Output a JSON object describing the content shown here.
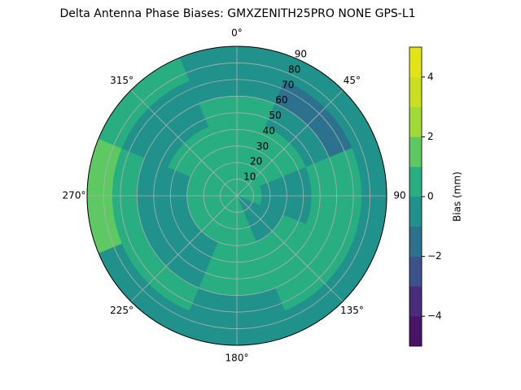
{
  "chart_data": {
    "type": "polar-contour",
    "title": "Delta Antenna Phase Biases: GMXZENITH25PRO  NONE GPS-L1",
    "azimuth": [
      0,
      45,
      90,
      135,
      180,
      225,
      270,
      315
    ],
    "zenith_edges": [
      0,
      15,
      30,
      45,
      60,
      75,
      90
    ],
    "values": [
      [
        0.5,
        0.5,
        0.5,
        -0.5,
        0.5,
        0.5,
        0.5,
        0.5
      ],
      [
        0.5,
        0.5,
        -0.5,
        -0.5,
        0.5,
        0.5,
        0.5,
        0.5
      ],
      [
        0.5,
        0.5,
        -0.5,
        0.5,
        0.5,
        -0.5,
        -0.5,
        0.5
      ],
      [
        0.5,
        -0.5,
        0.5,
        0.5,
        0.5,
        -0.5,
        -0.5,
        -0.5
      ],
      [
        -0.5,
        -1.5,
        0.5,
        0.5,
        -0.5,
        0.5,
        0.5,
        -0.5
      ],
      [
        -0.5,
        -0.5,
        -0.5,
        -0.5,
        -0.5,
        -0.5,
        1.5,
        0.5
      ]
    ],
    "rlim": [
      0,
      90
    ],
    "rticks": [
      10,
      20,
      30,
      40,
      50,
      60,
      70,
      80,
      90
    ],
    "thetaticks": [
      {
        "value": 0,
        "label": "0°"
      },
      {
        "value": 45,
        "label": "45°"
      },
      90,
      {
        "value": 135,
        "label": "135°"
      },
      {
        "value": 180,
        "label": "180°"
      },
      {
        "value": 225,
        "label": "225°"
      },
      {
        "value": 270,
        "label": "270°"
      },
      {
        "value": 315,
        "label": "315°"
      }
    ],
    "grid": true,
    "colorbar": {
      "label": "Bias (mm)",
      "levels": [
        -5,
        -4,
        -3,
        -2,
        -1,
        0,
        1,
        2,
        3,
        4,
        5
      ],
      "colors": [
        "#481467",
        "#472d7b",
        "#3b528b",
        "#2c728e",
        "#21918c",
        "#28ae80",
        "#5ec962",
        "#a0da39",
        "#c8e020",
        "#e3e418"
      ],
      "ticks": [
        {
          "value": -4,
          "label": "−4"
        },
        {
          "value": -2,
          "label": "−2"
        },
        0,
        2,
        4
      ]
    }
  }
}
